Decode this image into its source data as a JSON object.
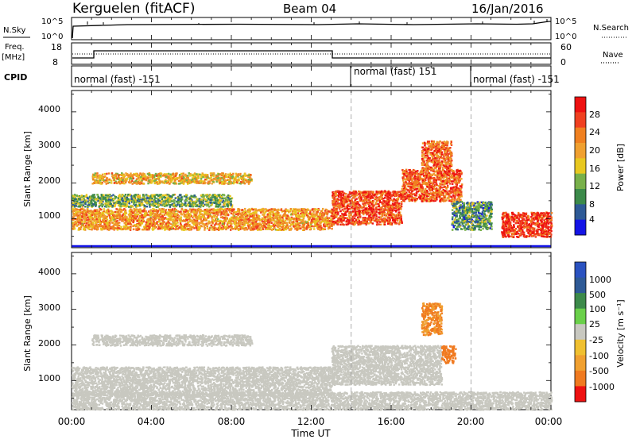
{
  "header": {
    "station": "Kerguelen (fitACF)",
    "beam": "Beam 04",
    "date": "16/Jan/2016"
  },
  "aux_panels": {
    "nsky_label": "N.Sky",
    "nsky_ticks": [
      "10^5",
      "10^0"
    ],
    "nsearch_label": "N.Search",
    "nsearch_ticks": [
      "10^5",
      "10^0"
    ],
    "freq_label_1": "Freq.",
    "freq_label_2": "[MHz]",
    "freq_ticks": [
      "18",
      "8"
    ],
    "nave_label": "Nave",
    "nave_ticks": [
      "60",
      "0"
    ],
    "cpid_label": "CPID"
  },
  "cpid_segments": [
    {
      "label": "normal (fast) -151",
      "start_hour": 0,
      "end_hour": 14
    },
    {
      "label": "normal (fast) 151",
      "start_hour": 14,
      "end_hour": 20
    },
    {
      "label": "normal (fast) -151",
      "start_hour": 20,
      "end_hour": 24
    }
  ],
  "colorbars": {
    "power": {
      "label": "Power [dB]",
      "ticks": [
        "28",
        "24",
        "20",
        "16",
        "12",
        "8",
        "4"
      ],
      "colors": [
        "#ee1111",
        "#f04020",
        "#f08020",
        "#f0a030",
        "#e8c820",
        "#78b04a",
        "#3c8a4a",
        "#2e5a96",
        "#1414e6"
      ]
    },
    "velocity": {
      "label": "Velocity [m s⁻¹]",
      "ticks": [
        "1000",
        "500",
        "100",
        "25",
        "-25",
        "-100",
        "-500",
        "-1000"
      ],
      "colors": [
        "#2a52c0",
        "#2e5a96",
        "#3c8a4a",
        "#6ad04a",
        "#c8c8c0",
        "#f0c030",
        "#f0a030",
        "#f07a20",
        "#ee1111"
      ]
    }
  },
  "chart_data": [
    {
      "type": "heatmap",
      "title": "Power",
      "ylabel": "Slant Range [km]",
      "yticks": [
        "4000",
        "3000",
        "2000",
        "1000"
      ],
      "ylim": [
        180,
        4600
      ],
      "xlim": [
        0,
        24
      ],
      "x_unit": "hours UT",
      "colorbar_label": "Power [dB]",
      "colorbar_range": [
        0,
        30
      ],
      "scatter_bands": [
        {
          "x0": 0.0,
          "x1": 13.0,
          "y0": 700,
          "y1": 1300,
          "value": 20
        },
        {
          "x0": 0.0,
          "x1": 8.0,
          "y0": 1350,
          "y1": 1700,
          "value": 10
        },
        {
          "x0": 13.0,
          "x1": 16.5,
          "y0": 850,
          "y1": 1800,
          "value": 26
        },
        {
          "x0": 16.5,
          "x1": 19.5,
          "y0": 1500,
          "y1": 2400,
          "value": 25
        },
        {
          "x0": 1.0,
          "x1": 9.0,
          "y0": 2000,
          "y1": 2300,
          "value": 18
        },
        {
          "x0": 17.5,
          "x1": 19.0,
          "y0": 2400,
          "y1": 3200,
          "value": 24
        },
        {
          "x0": 19.0,
          "x1": 21.0,
          "y0": 700,
          "y1": 1500,
          "value": 8
        },
        {
          "x0": 21.5,
          "x1": 24.0,
          "y0": 500,
          "y1": 1200,
          "value": 28
        }
      ]
    },
    {
      "type": "heatmap",
      "title": "Velocity",
      "ylabel": "Slant Range [km]",
      "yticks": [
        "4000",
        "3000",
        "2000",
        "1000"
      ],
      "ylim": [
        180,
        4600
      ],
      "xlim": [
        0,
        24
      ],
      "x_unit": "hours UT",
      "xlabel": "Time UT",
      "xticks": [
        "00:00",
        "04:00",
        "08:00",
        "12:00",
        "16:00",
        "20:00",
        "00:00"
      ],
      "colorbar_label": "Velocity [m s⁻¹]",
      "scatter_bands": [
        {
          "x0": 0.0,
          "x1": 13.0,
          "y0": 600,
          "y1": 1400,
          "value": 0
        },
        {
          "x0": 1.0,
          "x1": 9.0,
          "y0": 2000,
          "y1": 2300,
          "value": 0
        },
        {
          "x0": 13.0,
          "x1": 18.5,
          "y0": 900,
          "y1": 2000,
          "value": 0
        },
        {
          "x0": 17.5,
          "x1": 18.5,
          "y0": 2300,
          "y1": 3200,
          "value": -300
        },
        {
          "x0": 18.5,
          "x1": 19.2,
          "y0": 1500,
          "y1": 2000,
          "value": -600
        },
        {
          "x0": 0.0,
          "x1": 24.0,
          "y0": 200,
          "y1": 700,
          "value": 0
        }
      ]
    }
  ]
}
